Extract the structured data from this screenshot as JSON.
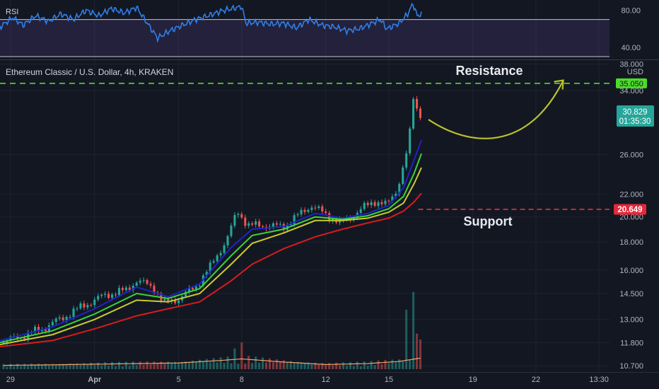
{
  "rsi_panel": {
    "label": "RSI",
    "ticks": [
      {
        "value": 80,
        "label": "80.00"
      },
      {
        "value": 40,
        "label": "40.00"
      }
    ],
    "upper_band": 70,
    "lower_band": 30,
    "ylim": [
      30,
      88
    ]
  },
  "price_panel": {
    "title": "Ethereum Classic / U.S. Dollar, 4h, KRAKEN",
    "currency": "USD",
    "scale": "log",
    "ylim": [
      10.55,
      38.3
    ],
    "ticks": [
      {
        "value": 38,
        "label": "38.000"
      },
      {
        "value": 34,
        "label": "34.000"
      },
      {
        "value": 26,
        "label": "26.000"
      },
      {
        "value": 22,
        "label": "22.000"
      },
      {
        "value": 20,
        "label": "20.000"
      },
      {
        "value": 18,
        "label": "18.000"
      },
      {
        "value": 16,
        "label": "16.000"
      },
      {
        "value": 14.5,
        "label": "14.500"
      },
      {
        "value": 13,
        "label": "13.000"
      },
      {
        "value": 11.8,
        "label": "11.800"
      },
      {
        "value": 10.7,
        "label": "10.700"
      }
    ],
    "resistance": {
      "value": 35.05,
      "label": "35.050",
      "text": "Resistance",
      "color": "#4bdc2a"
    },
    "support": {
      "value": 20.649,
      "label": "20.649",
      "text": "Support",
      "color": "#f23645"
    },
    "last_price": {
      "value": 30.829,
      "label": "30.829",
      "countdown": "01:35:30"
    }
  },
  "time_axis": {
    "labels": [
      {
        "text": "29",
        "day": 29
      },
      {
        "text": "Apr",
        "day": 33
      },
      {
        "text": "5",
        "day": 37
      },
      {
        "text": "8",
        "day": 40
      },
      {
        "text": "12",
        "day": 44
      },
      {
        "text": "15",
        "day": 47
      },
      {
        "text": "19",
        "day": 51
      },
      {
        "text": "22",
        "day": 54
      },
      {
        "text": "13:30",
        "day": 57
      }
    ]
  },
  "colors": {
    "background": "#131722",
    "up": "#26a69a",
    "down": "#ef5350",
    "rsi_line": "#2f7fe8",
    "rsi_fill": "#7e57c2",
    "ma_fast": "#1e24c8",
    "ma_mid": "#3bd43b",
    "ma_slow": "#c8cd2c",
    "ma_long": "#d81c1c",
    "volume_ma": "#f5a36c",
    "projection": "#b9c22b"
  },
  "chart_data": {
    "type": "candlestick",
    "x_unit": "day (29 = Mar 29, 33 = Apr 1)",
    "x_range": [
      28.5,
      57.5
    ],
    "price_anchors": [
      {
        "day": 28.5,
        "price": 11.8
      },
      {
        "day": 29.5,
        "price": 12.1
      },
      {
        "day": 30.5,
        "price": 12.5
      },
      {
        "day": 31.5,
        "price": 13.1
      },
      {
        "day": 32.5,
        "price": 13.8
      },
      {
        "day": 33.5,
        "price": 14.4
      },
      {
        "day": 34.5,
        "price": 14.7
      },
      {
        "day": 35.0,
        "price": 15.3
      },
      {
        "day": 35.8,
        "price": 14.9
      },
      {
        "day": 36.3,
        "price": 13.9
      },
      {
        "day": 37.0,
        "price": 14.2
      },
      {
        "day": 37.8,
        "price": 14.9
      },
      {
        "day": 38.5,
        "price": 16.2
      },
      {
        "day": 39.3,
        "price": 18.2
      },
      {
        "day": 39.8,
        "price": 20.5
      },
      {
        "day": 40.3,
        "price": 19.3
      },
      {
        "day": 41.0,
        "price": 19.3
      },
      {
        "day": 42.0,
        "price": 19.2
      },
      {
        "day": 42.8,
        "price": 20.3
      },
      {
        "day": 43.3,
        "price": 21.0
      },
      {
        "day": 44.0,
        "price": 20.2
      },
      {
        "day": 44.7,
        "price": 19.5
      },
      {
        "day": 45.3,
        "price": 20.1
      },
      {
        "day": 45.8,
        "price": 20.8
      },
      {
        "day": 46.3,
        "price": 21.4
      },
      {
        "day": 46.9,
        "price": 21.0
      },
      {
        "day": 47.4,
        "price": 22.5
      },
      {
        "day": 47.8,
        "price": 25.5
      },
      {
        "day": 48.0,
        "price": 28.5
      },
      {
        "day": 48.15,
        "price": 33.2
      },
      {
        "day": 48.4,
        "price": 31.0
      },
      {
        "day": 48.55,
        "price": 30.83
      }
    ],
    "moving_averages": [
      {
        "key": "ma_fast",
        "points": [
          [
            28.5,
            11.9
          ],
          [
            31,
            12.6
          ],
          [
            33,
            13.6
          ],
          [
            35,
            14.9
          ],
          [
            36.5,
            14.3
          ],
          [
            38,
            15.1
          ],
          [
            39.5,
            17.6
          ],
          [
            40.5,
            19.0
          ],
          [
            42,
            19.2
          ],
          [
            43.5,
            20.3
          ],
          [
            44.8,
            19.9
          ],
          [
            46,
            20.3
          ],
          [
            47,
            21.0
          ],
          [
            47.7,
            22.6
          ],
          [
            48.2,
            25.4
          ],
          [
            48.55,
            27.6
          ]
        ]
      },
      {
        "key": "ma_mid",
        "points": [
          [
            28.5,
            11.8
          ],
          [
            31,
            12.4
          ],
          [
            33,
            13.3
          ],
          [
            35,
            14.5
          ],
          [
            36.5,
            14.2
          ],
          [
            38,
            14.8
          ],
          [
            39.5,
            17.0
          ],
          [
            40.5,
            18.5
          ],
          [
            42,
            19.0
          ],
          [
            43.5,
            20.0
          ],
          [
            44.8,
            19.8
          ],
          [
            46,
            20.1
          ],
          [
            47,
            20.7
          ],
          [
            47.7,
            21.8
          ],
          [
            48.2,
            24.0
          ],
          [
            48.55,
            26.1
          ]
        ]
      },
      {
        "key": "ma_slow",
        "points": [
          [
            28.5,
            11.7
          ],
          [
            31,
            12.2
          ],
          [
            33,
            13.0
          ],
          [
            35,
            14.1
          ],
          [
            36.5,
            14.0
          ],
          [
            38,
            14.5
          ],
          [
            39.5,
            16.4
          ],
          [
            40.5,
            17.9
          ],
          [
            42,
            18.7
          ],
          [
            43.5,
            19.7
          ],
          [
            44.8,
            19.7
          ],
          [
            46,
            19.9
          ],
          [
            47,
            20.4
          ],
          [
            47.7,
            21.2
          ],
          [
            48.2,
            23.0
          ],
          [
            48.55,
            24.6
          ]
        ]
      },
      {
        "key": "ma_long",
        "points": [
          [
            28.5,
            11.6
          ],
          [
            31,
            11.9
          ],
          [
            33,
            12.5
          ],
          [
            35,
            13.2
          ],
          [
            36.5,
            13.6
          ],
          [
            38,
            14.0
          ],
          [
            39.5,
            15.3
          ],
          [
            40.5,
            16.4
          ],
          [
            42,
            17.5
          ],
          [
            43.5,
            18.4
          ],
          [
            44.8,
            19.0
          ],
          [
            46,
            19.5
          ],
          [
            47,
            19.9
          ],
          [
            47.7,
            20.5
          ],
          [
            48.2,
            21.3
          ],
          [
            48.55,
            22.1
          ]
        ]
      }
    ],
    "rsi_anchors": [
      {
        "day": 28.5,
        "value": 62
      },
      {
        "day": 29.1,
        "value": 72
      },
      {
        "day": 29.6,
        "value": 64
      },
      {
        "day": 30.2,
        "value": 74
      },
      {
        "day": 30.8,
        "value": 68
      },
      {
        "day": 31.4,
        "value": 76
      },
      {
        "day": 32.0,
        "value": 70
      },
      {
        "day": 32.6,
        "value": 80
      },
      {
        "day": 33.2,
        "value": 74
      },
      {
        "day": 33.8,
        "value": 82
      },
      {
        "day": 34.4,
        "value": 77
      },
      {
        "day": 35.0,
        "value": 83
      },
      {
        "day": 35.6,
        "value": 63
      },
      {
        "day": 36.0,
        "value": 50
      },
      {
        "day": 36.6,
        "value": 58
      },
      {
        "day": 37.2,
        "value": 64
      },
      {
        "day": 37.8,
        "value": 70
      },
      {
        "day": 38.4,
        "value": 74
      },
      {
        "day": 39.0,
        "value": 79
      },
      {
        "day": 39.6,
        "value": 82
      },
      {
        "day": 40.0,
        "value": 84
      },
      {
        "day": 40.2,
        "value": 66
      },
      {
        "day": 40.8,
        "value": 67
      },
      {
        "day": 41.4,
        "value": 65
      },
      {
        "day": 42.0,
        "value": 66
      },
      {
        "day": 42.6,
        "value": 61
      },
      {
        "day": 43.2,
        "value": 70
      },
      {
        "day": 43.8,
        "value": 64
      },
      {
        "day": 44.4,
        "value": 62
      },
      {
        "day": 45.0,
        "value": 58
      },
      {
        "day": 45.6,
        "value": 60
      },
      {
        "day": 46.2,
        "value": 66
      },
      {
        "day": 46.6,
        "value": 70
      },
      {
        "day": 46.9,
        "value": 60
      },
      {
        "day": 47.5,
        "value": 66
      },
      {
        "day": 47.9,
        "value": 76
      },
      {
        "day": 48.15,
        "value": 87
      },
      {
        "day": 48.35,
        "value": 74
      },
      {
        "day": 48.55,
        "value": 76
      }
    ],
    "volume": {
      "baseline_anchors": [
        [
          28.5,
          1.2
        ],
        [
          32,
          1.5
        ],
        [
          35,
          1.8
        ],
        [
          37,
          2.0
        ],
        [
          39,
          2.8
        ],
        [
          40,
          3.3
        ],
        [
          42,
          2.3
        ],
        [
          44,
          1.5
        ],
        [
          46,
          1.8
        ],
        [
          47.5,
          2.5
        ],
        [
          48.55,
          3.6
        ]
      ],
      "spikes": [
        {
          "day": 40.0,
          "value": 9.0
        },
        {
          "day": 39.7,
          "value": 7.0
        },
        {
          "day": 47.9,
          "value": 20.0
        },
        {
          "day": 48.1,
          "value": 15.0
        },
        {
          "day": 48.2,
          "value": 26.0
        },
        {
          "day": 48.3,
          "value": 12.0
        },
        {
          "day": 48.45,
          "value": 10.0
        }
      ]
    }
  }
}
